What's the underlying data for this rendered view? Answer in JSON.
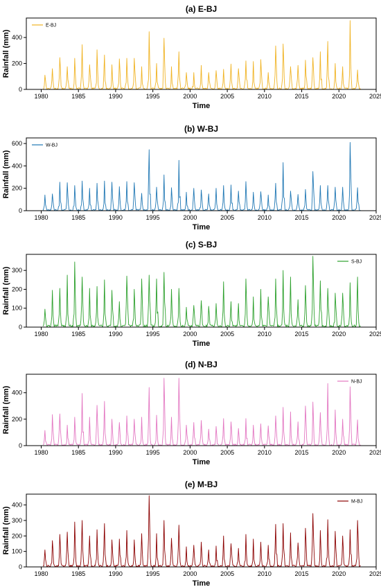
{
  "chart_data": [
    {
      "type": "line",
      "title": "(a) E-BJ",
      "xlabel": "Time",
      "ylabel": "Rainfall (mm)",
      "xlim": [
        1978,
        2025
      ],
      "ylim": [
        0,
        550
      ],
      "xticks": [
        1980,
        1985,
        1990,
        1995,
        2000,
        2005,
        2010,
        2015,
        2020,
        2025
      ],
      "yticks": [
        0,
        200,
        400
      ],
      "grid": false,
      "legend_position": "top-left",
      "series": [
        {
          "name": "E-BJ",
          "color": "#F0B323",
          "annual_peak_years": [
            1980,
            1981,
            1982,
            1983,
            1984,
            1985,
            1986,
            1987,
            1988,
            1989,
            1990,
            1991,
            1992,
            1993,
            1994,
            1995,
            1996,
            1997,
            1998,
            1999,
            2000,
            2001,
            2002,
            2003,
            2004,
            2005,
            2006,
            2007,
            2008,
            2009,
            2010,
            2011,
            2012,
            2013,
            2014,
            2015,
            2016,
            2017,
            2018,
            2019,
            2020,
            2021,
            2022
          ],
          "annual_peaks": [
            110,
            160,
            245,
            175,
            240,
            345,
            190,
            305,
            265,
            190,
            235,
            240,
            240,
            175,
            445,
            200,
            395,
            175,
            290,
            130,
            130,
            185,
            130,
            145,
            155,
            195,
            160,
            220,
            215,
            230,
            130,
            335,
            350,
            175,
            185,
            225,
            245,
            290,
            370,
            200,
            175,
            530,
            150
          ]
        }
      ]
    },
    {
      "type": "line",
      "title": "(b) W-BJ",
      "xlabel": "Time",
      "ylabel": "Rainfall (mm)",
      "xlim": [
        1978,
        2025
      ],
      "ylim": [
        0,
        650
      ],
      "xticks": [
        1980,
        1985,
        1990,
        1995,
        2000,
        2005,
        2010,
        2015,
        2020,
        2025
      ],
      "yticks": [
        0,
        200,
        400,
        600
      ],
      "grid": false,
      "legend_position": "top-left",
      "series": [
        {
          "name": "W-BJ",
          "color": "#1F77B4",
          "annual_peak_years": [
            1980,
            1981,
            1982,
            1983,
            1984,
            1985,
            1986,
            1987,
            1988,
            1989,
            1990,
            1991,
            1992,
            1993,
            1994,
            1995,
            1996,
            1997,
            1998,
            1999,
            2000,
            2001,
            2002,
            2003,
            2004,
            2005,
            2006,
            2007,
            2008,
            2009,
            2010,
            2011,
            2012,
            2013,
            2014,
            2015,
            2016,
            2017,
            2018,
            2019,
            2020,
            2021,
            2022
          ],
          "annual_peaks": [
            140,
            150,
            255,
            250,
            225,
            265,
            200,
            245,
            265,
            255,
            215,
            260,
            250,
            155,
            545,
            210,
            320,
            205,
            450,
            165,
            200,
            185,
            150,
            200,
            225,
            230,
            175,
            260,
            165,
            170,
            140,
            245,
            430,
            175,
            145,
            190,
            350,
            225,
            225,
            210,
            210,
            610,
            205
          ]
        }
      ]
    },
    {
      "type": "line",
      "title": "(c) S-BJ",
      "xlabel": "Time",
      "ylabel": "Rainfall (mm)",
      "xlim": [
        1978,
        2025
      ],
      "ylim": [
        0,
        385
      ],
      "xticks": [
        1980,
        1985,
        1990,
        1995,
        2000,
        2005,
        2010,
        2015,
        2020,
        2025
      ],
      "yticks": [
        0,
        100,
        200,
        300
      ],
      "grid": false,
      "legend_position": "top-right",
      "series": [
        {
          "name": "S-BJ",
          "color": "#2CA02C",
          "annual_peak_years": [
            1980,
            1981,
            1982,
            1983,
            1984,
            1985,
            1986,
            1987,
            1988,
            1989,
            1990,
            1991,
            1992,
            1993,
            1994,
            1995,
            1996,
            1997,
            1998,
            1999,
            2000,
            2001,
            2002,
            2003,
            2004,
            2005,
            2006,
            2007,
            2008,
            2009,
            2010,
            2011,
            2012,
            2013,
            2014,
            2015,
            2016,
            2017,
            2018,
            2019,
            2020,
            2021,
            2022
          ],
          "annual_peaks": [
            95,
            195,
            205,
            275,
            345,
            265,
            205,
            215,
            250,
            195,
            135,
            270,
            200,
            255,
            275,
            255,
            290,
            200,
            205,
            105,
            115,
            140,
            110,
            125,
            240,
            135,
            125,
            255,
            160,
            200,
            160,
            255,
            300,
            265,
            145,
            220,
            375,
            245,
            205,
            180,
            180,
            235,
            265
          ]
        }
      ]
    },
    {
      "type": "line",
      "title": "(d) N-BJ",
      "xlabel": "Time",
      "ylabel": "Rainfall (mm)",
      "xlim": [
        1978,
        2025
      ],
      "ylim": [
        0,
        540
      ],
      "xticks": [
        1980,
        1985,
        1990,
        1995,
        2000,
        2005,
        2010,
        2015,
        2020,
        2025
      ],
      "yticks": [
        0,
        200,
        400
      ],
      "grid": false,
      "legend_position": "top-right",
      "series": [
        {
          "name": "N-BJ",
          "color": "#E377C2",
          "annual_peak_years": [
            1980,
            1981,
            1982,
            1983,
            1984,
            1985,
            1986,
            1987,
            1988,
            1989,
            1990,
            1991,
            1992,
            1993,
            1994,
            1995,
            1996,
            1997,
            1998,
            1999,
            2000,
            2001,
            2002,
            2003,
            2004,
            2005,
            2006,
            2007,
            2008,
            2009,
            2010,
            2011,
            2012,
            2013,
            2014,
            2015,
            2016,
            2017,
            2018,
            2019,
            2020,
            2021,
            2022
          ],
          "annual_peaks": [
            115,
            235,
            240,
            155,
            215,
            395,
            215,
            305,
            335,
            200,
            175,
            225,
            200,
            215,
            440,
            230,
            510,
            215,
            510,
            155,
            175,
            190,
            125,
            145,
            205,
            180,
            130,
            205,
            155,
            165,
            150,
            225,
            290,
            255,
            180,
            300,
            330,
            250,
            470,
            270,
            200,
            445,
            195
          ]
        }
      ]
    },
    {
      "type": "line",
      "title": "(e) M-BJ",
      "xlabel": "Time",
      "ylabel": "Rainfall (mm)",
      "xlim": [
        1978,
        2025
      ],
      "ylim": [
        0,
        470
      ],
      "xticks": [
        1980,
        1985,
        1990,
        1995,
        2000,
        2005,
        2010,
        2015,
        2020,
        2025
      ],
      "yticks": [
        0,
        100,
        200,
        300,
        400
      ],
      "grid": false,
      "legend_position": "top-right",
      "series": [
        {
          "name": "M-BJ",
          "color": "#8B0000",
          "annual_peak_years": [
            1980,
            1981,
            1982,
            1983,
            1984,
            1985,
            1986,
            1987,
            1988,
            1989,
            1990,
            1991,
            1992,
            1993,
            1994,
            1995,
            1996,
            1997,
            1998,
            1999,
            2000,
            2001,
            2002,
            2003,
            2004,
            2005,
            2006,
            2007,
            2008,
            2009,
            2010,
            2011,
            2012,
            2013,
            2014,
            2015,
            2016,
            2017,
            2018,
            2019,
            2020,
            2021,
            2022
          ],
          "annual_peaks": [
            110,
            170,
            210,
            225,
            290,
            300,
            200,
            240,
            280,
            175,
            180,
            235,
            175,
            215,
            460,
            215,
            300,
            185,
            270,
            130,
            140,
            160,
            110,
            135,
            200,
            150,
            120,
            210,
            180,
            160,
            140,
            275,
            280,
            220,
            155,
            250,
            345,
            235,
            305,
            230,
            200,
            240,
            300
          ]
        }
      ]
    }
  ]
}
